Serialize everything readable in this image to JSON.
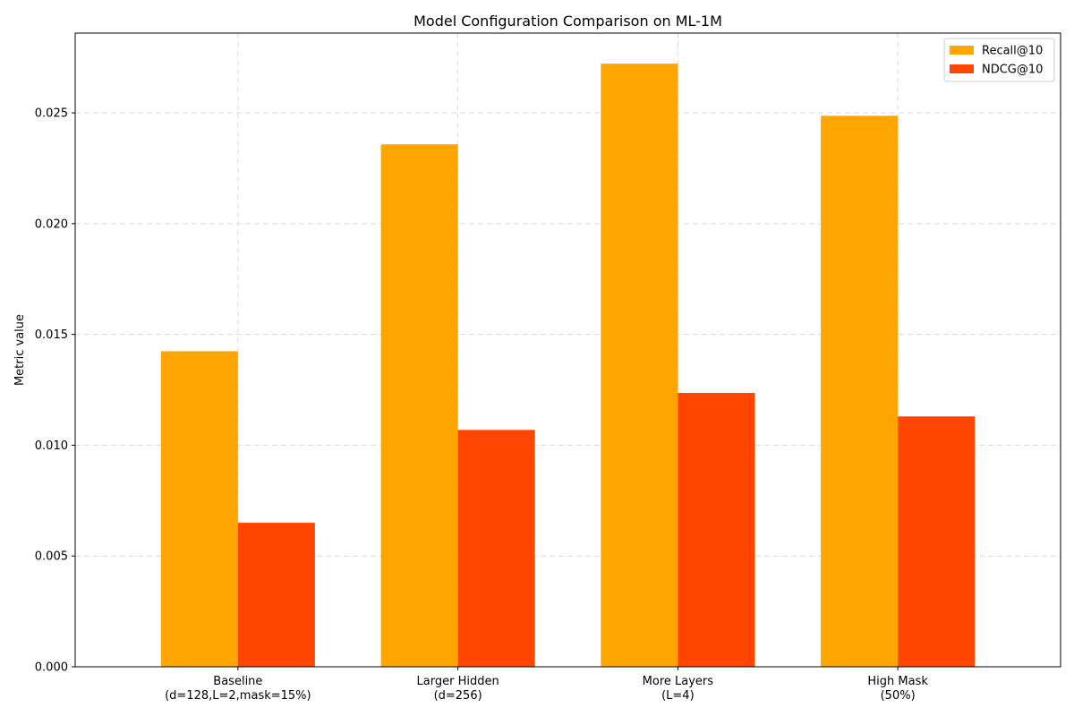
{
  "chart_data": {
    "type": "bar",
    "title": "Model Configuration Comparison on ML-1M",
    "xlabel": "",
    "ylabel": "Metric value",
    "ylim": [
      0,
      0.0286
    ],
    "grid": true,
    "legend_position": "top-right",
    "categories": [
      [
        "Baseline",
        "(d=128,L=2,mask=15%)"
      ],
      [
        "Larger Hidden",
        "(d=256)"
      ],
      [
        "More Layers",
        "(L=4)"
      ],
      [
        "High Mask",
        "(50%)"
      ]
    ],
    "yticks": [
      "0.000",
      "0.005",
      "0.010",
      "0.015",
      "0.020",
      "0.025"
    ],
    "ytick_values": [
      0,
      0.005,
      0.01,
      0.015,
      0.02,
      0.025
    ],
    "series": [
      {
        "name": "Recall@10",
        "color": "#FFA500",
        "values": [
          0.01424,
          0.02358,
          0.02722,
          0.02487
        ]
      },
      {
        "name": "NDCG@10",
        "color": "#FF4500",
        "values": [
          0.0065,
          0.01069,
          0.01236,
          0.0113
        ]
      }
    ]
  }
}
